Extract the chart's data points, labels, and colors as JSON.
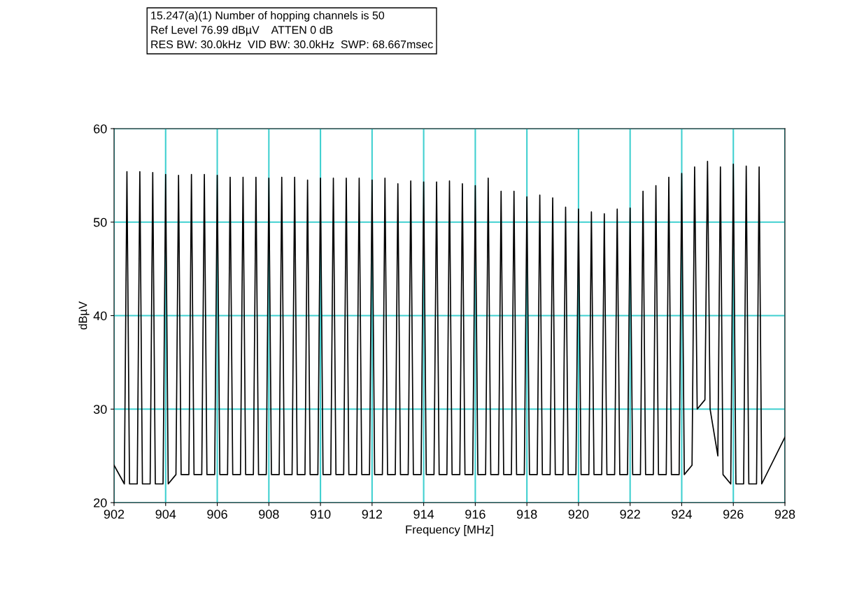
{
  "chart_data": {
    "type": "line",
    "title": "15.247(a)(1) Number of hopping channels is 50",
    "annotations": [
      "Ref Level 76.99 dBµV    ATTEN 0 dB",
      "RES BW: 30.0kHz  VID BW: 30.0kHz  SWP: 68.667msec"
    ],
    "xlabel": "Frequency [MHz]",
    "ylabel": "dBµV",
    "xlim": [
      902,
      928
    ],
    "xticks": [
      902,
      904,
      906,
      908,
      910,
      912,
      914,
      916,
      918,
      920,
      922,
      924,
      926,
      928
    ],
    "ylim": [
      20,
      60
    ],
    "yticks": [
      20,
      30,
      40,
      50,
      60
    ],
    "grid": true,
    "series": [
      {
        "color": "#000000",
        "x": [
          902,
          902.4,
          902.5,
          902.6,
          902.9,
          903.0,
          903.1,
          903.4,
          903.5,
          903.6,
          903.9,
          904.0,
          904.1,
          904.4,
          904.5,
          904.6,
          904.9,
          905.0,
          905.1,
          905.4,
          905.5,
          905.6,
          905.9,
          906.0,
          906.1,
          906.4,
          906.5,
          906.6,
          906.9,
          907.0,
          907.1,
          907.4,
          907.5,
          907.6,
          907.9,
          908.0,
          908.1,
          908.4,
          908.5,
          908.6,
          908.9,
          909.0,
          909.1,
          909.4,
          909.5,
          909.6,
          909.9,
          910.0,
          910.1,
          910.4,
          910.5,
          910.6,
          910.9,
          911.0,
          911.1,
          911.4,
          911.5,
          911.6,
          911.9,
          912.0,
          912.1,
          912.4,
          912.5,
          912.6,
          912.9,
          913.0,
          913.1,
          913.4,
          913.5,
          913.6,
          913.9,
          914.0,
          914.1,
          914.4,
          914.5,
          914.6,
          914.9,
          915.0,
          915.1,
          915.4,
          915.5,
          915.6,
          915.9,
          916.0,
          916.1,
          916.4,
          916.5,
          916.6,
          916.9,
          917.0,
          917.1,
          917.4,
          917.5,
          917.6,
          917.9,
          918.0,
          918.1,
          918.4,
          918.5,
          918.6,
          918.9,
          919.0,
          919.1,
          919.4,
          919.5,
          919.6,
          919.9,
          920.0,
          920.1,
          920.4,
          920.5,
          920.6,
          920.9,
          921.0,
          921.1,
          921.4,
          921.5,
          921.6,
          921.9,
          922.0,
          922.1,
          922.4,
          922.5,
          922.6,
          922.9,
          923.0,
          923.1,
          923.4,
          923.5,
          923.6,
          923.9,
          924.0,
          924.1,
          924.4,
          924.5,
          924.6,
          924.9,
          925.0,
          925.1,
          925.4,
          925.5,
          925.6,
          925.9,
          926.0,
          926.1,
          926.4,
          926.5,
          926.6,
          926.9,
          927.0,
          927.1,
          928
        ],
        "values": [
          24,
          22,
          55.4,
          22,
          22,
          55.4,
          22,
          22,
          55.3,
          22,
          22,
          55.1,
          22,
          23,
          55.0,
          23,
          23,
          55.1,
          23,
          23,
          55.1,
          23,
          23,
          55.0,
          23,
          23,
          54.8,
          23,
          23,
          54.8,
          23,
          23,
          54.8,
          23,
          23,
          54.7,
          23,
          23,
          54.8,
          23,
          23,
          54.8,
          23,
          23,
          54.5,
          23,
          23,
          54.7,
          23,
          23,
          54.7,
          23,
          23,
          54.7,
          23,
          23,
          54.7,
          23,
          23,
          54.5,
          23,
          23,
          54.7,
          23,
          23,
          54.1,
          23,
          23,
          54.4,
          23,
          23,
          54.3,
          23,
          23,
          54.3,
          23,
          23,
          54.4,
          23,
          23,
          54.1,
          23,
          23,
          53.9,
          23,
          23,
          54.7,
          23,
          23,
          53.3,
          23,
          23,
          53.3,
          23,
          23,
          52.7,
          23,
          23,
          52.9,
          23,
          23,
          52.6,
          23,
          23,
          51.6,
          23,
          23,
          51.4,
          23,
          23,
          51.1,
          23,
          23,
          50.9,
          23,
          23,
          51.4,
          23,
          23,
          51.5,
          23,
          23,
          53.3,
          23,
          23,
          53.9,
          23,
          23,
          54.8,
          23,
          23,
          55.2,
          23,
          24,
          55.9,
          30,
          31,
          56.5,
          30,
          25,
          55.9,
          23,
          22,
          56.2,
          22,
          22,
          56.0,
          22,
          22,
          55.9,
          22,
          27
        ]
      }
    ]
  }
}
